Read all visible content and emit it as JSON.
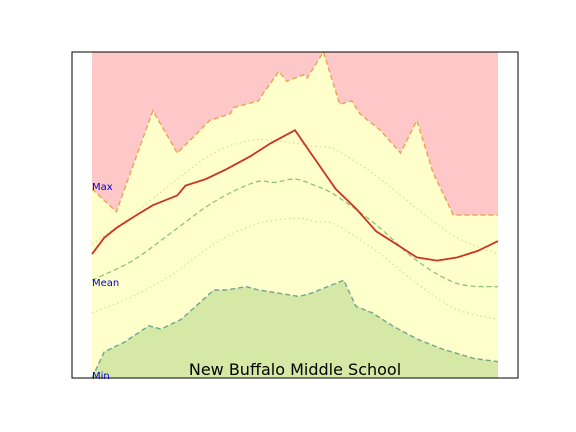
{
  "chart_data": {
    "type": "area",
    "title": "New Buffalo Middle School",
    "xlim": [
      0,
      1
    ],
    "ylim": [
      0,
      1
    ],
    "grid": false,
    "legend": "none",
    "label_min": "Min",
    "label_mean": "Mean",
    "label_max": "Max",
    "colors": {
      "max_fill": "#ffc8c8",
      "mid_fill": "#ffffcc",
      "min_fill": "#d6e8a6",
      "max_edge": "#f0a050",
      "min_edge": "#6aa890",
      "mean_line": "#8cc57a",
      "sd_line": "#d8dc90",
      "current_line": "#cc3322",
      "label_text": "#0000cc"
    },
    "series": [
      {
        "key": "max",
        "x": [
          0,
          0.06,
          0.15,
          0.21,
          0.29,
          0.34,
          0.35,
          0.41,
          0.42,
          0.46,
          0.48,
          0.52,
          0.53,
          0.57,
          0.61,
          0.64,
          0.66,
          0.67,
          0.71,
          0.76,
          0.8,
          0.84,
          0.89,
          0.93,
          1.0
        ],
        "y": [
          0.58,
          0.51,
          0.82,
          0.69,
          0.79,
          0.81,
          0.83,
          0.85,
          0.87,
          0.94,
          0.91,
          0.93,
          0.92,
          1.0,
          0.84,
          0.85,
          0.81,
          0.8,
          0.76,
          0.69,
          0.79,
          0.63,
          0.5,
          0.5,
          0.5
        ]
      },
      {
        "key": "min",
        "x": [
          0,
          0.03,
          0.08,
          0.14,
          0.17,
          0.22,
          0.3,
          0.33,
          0.38,
          0.41,
          0.46,
          0.51,
          0.54,
          0.58,
          0.62,
          0.65,
          0.69,
          0.74,
          0.8,
          0.86,
          0.94,
          1.0
        ],
        "y": [
          0.0,
          0.08,
          0.11,
          0.16,
          0.15,
          0.18,
          0.27,
          0.27,
          0.28,
          0.27,
          0.26,
          0.25,
          0.26,
          0.28,
          0.3,
          0.22,
          0.2,
          0.16,
          0.12,
          0.09,
          0.06,
          0.05
        ]
      },
      {
        "key": "mean",
        "x": [
          0,
          0.1,
          0.2,
          0.3,
          0.4,
          0.45,
          0.5,
          0.55,
          0.6,
          0.7,
          0.8,
          0.9,
          1.0
        ],
        "y": [
          0.3,
          0.36,
          0.45,
          0.54,
          0.6,
          0.6,
          0.61,
          0.59,
          0.56,
          0.47,
          0.36,
          0.29,
          0.28
        ]
      },
      {
        "key": "mean_plus_sd",
        "x": [
          0,
          0.1,
          0.2,
          0.3,
          0.4,
          0.5,
          0.55,
          0.6,
          0.7,
          0.8,
          0.9,
          1.0
        ],
        "y": [
          0.41,
          0.5,
          0.6,
          0.69,
          0.73,
          0.72,
          0.71,
          0.7,
          0.62,
          0.52,
          0.43,
          0.38
        ]
      },
      {
        "key": "mean_minus_sd",
        "x": [
          0,
          0.1,
          0.2,
          0.3,
          0.4,
          0.5,
          0.55,
          0.6,
          0.7,
          0.8,
          0.9,
          1.0
        ],
        "y": [
          0.2,
          0.25,
          0.32,
          0.41,
          0.47,
          0.49,
          0.48,
          0.47,
          0.39,
          0.29,
          0.21,
          0.18
        ]
      },
      {
        "key": "current",
        "x": [
          0,
          0.03,
          0.06,
          0.11,
          0.15,
          0.21,
          0.23,
          0.28,
          0.33,
          0.39,
          0.44,
          0.5,
          0.55,
          0.6,
          0.65,
          0.7,
          0.75,
          0.8,
          0.85,
          0.9,
          0.95,
          1.0
        ],
        "y": [
          0.38,
          0.43,
          0.46,
          0.5,
          0.53,
          0.56,
          0.59,
          0.61,
          0.64,
          0.68,
          0.72,
          0.76,
          0.67,
          0.58,
          0.52,
          0.45,
          0.41,
          0.37,
          0.36,
          0.37,
          0.39,
          0.42
        ]
      }
    ]
  }
}
